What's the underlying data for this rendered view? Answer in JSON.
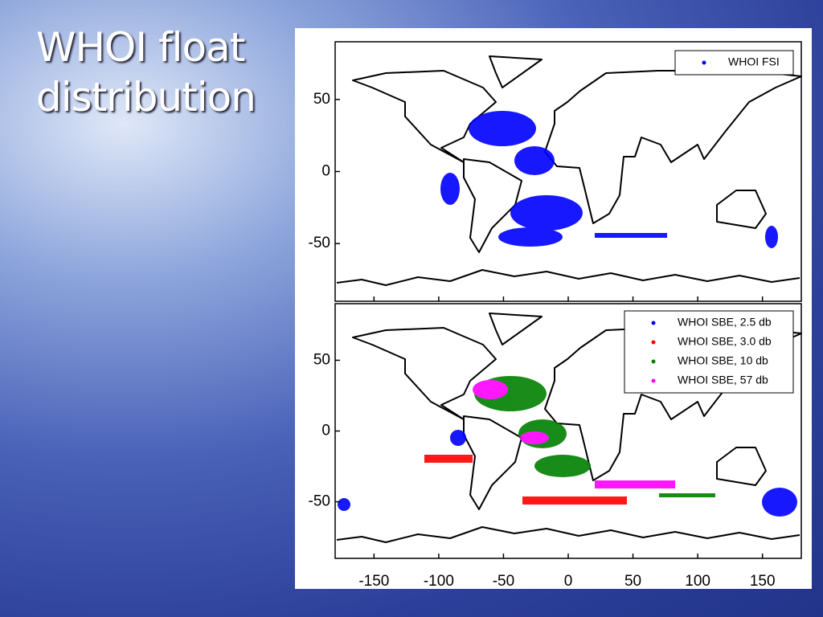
{
  "title": [
    "WHOI float",
    "distribution"
  ],
  "map": {
    "xlim": [
      -180,
      180
    ],
    "xticks": [
      -150,
      -100,
      -50,
      0,
      50,
      100,
      150
    ],
    "panels": [
      {
        "ylim": [
          -90,
          90
        ],
        "yticks": [
          50,
          0,
          -50
        ],
        "legend": [
          {
            "name": "WHOI FSI",
            "color": "#0000ff"
          }
        ]
      },
      {
        "ylim": [
          -90,
          90
        ],
        "yticks": [
          50,
          0,
          -50
        ],
        "legend": [
          {
            "name": "WHOI SBE, 2.5 db",
            "color": "#0000ff"
          },
          {
            "name": "WHOI SBE, 3.0 db",
            "color": "#ff0000"
          },
          {
            "name": "WHOI SBE, 10 db",
            "color": "#008000"
          },
          {
            "name": "WHOI SBE, 57 db",
            "color": "#ff00ff"
          }
        ]
      }
    ]
  }
}
